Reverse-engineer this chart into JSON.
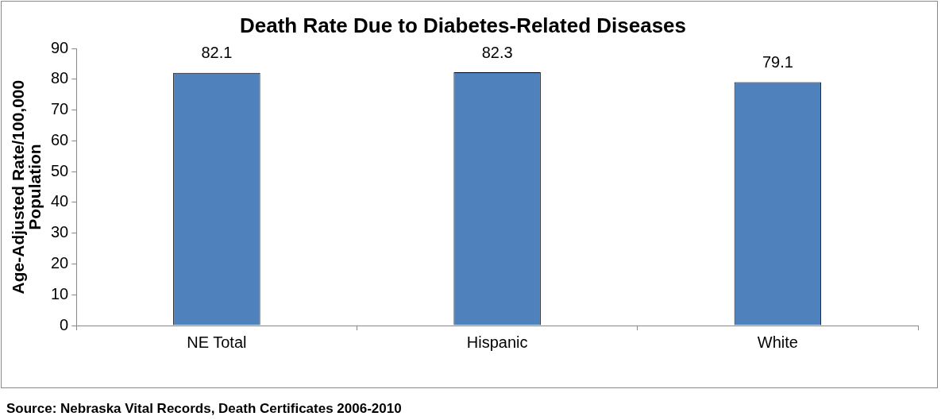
{
  "chart_data": {
    "type": "bar",
    "title": "Death Rate Due to Diabetes-Related Diseases",
    "ylabel": "Age-Adjusted Rate/100,000 Population",
    "categories": [
      "NE Total",
      "Hispanic",
      "White"
    ],
    "values": [
      82.1,
      82.3,
      79.1
    ],
    "color": "#4f81bd",
    "ylim": [
      0,
      90
    ],
    "yticks": [
      0,
      10,
      20,
      30,
      40,
      50,
      60,
      70,
      80,
      90
    ],
    "grid": false,
    "legend": false,
    "data_labels": true,
    "annotations": [
      "Source: Nebraska Vital Records, Death Certificates 2006-2010"
    ]
  }
}
